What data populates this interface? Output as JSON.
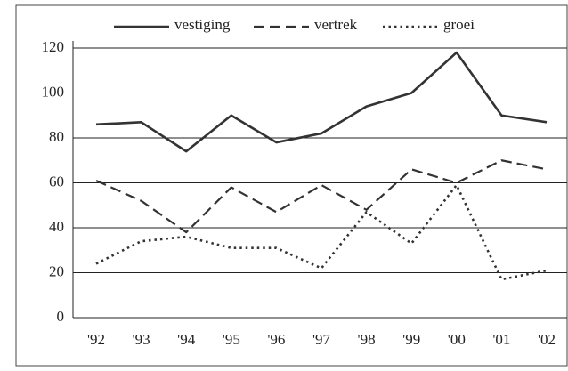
{
  "chart_data": {
    "type": "line",
    "categories": [
      "'92",
      "'93",
      "'94",
      "'95",
      "'96",
      "'97",
      "'98",
      "'99",
      "'00",
      "'01",
      "'02"
    ],
    "series": [
      {
        "name": "vestiging",
        "color": "#333333",
        "dash": "solid",
        "values": [
          86,
          87,
          74,
          90,
          78,
          82,
          94,
          100,
          118,
          90,
          87
        ]
      },
      {
        "name": "vertrek",
        "color": "#333333",
        "dash": "dashed",
        "values": [
          61,
          52,
          38,
          58,
          47,
          59,
          48,
          66,
          60,
          70,
          66
        ]
      },
      {
        "name": "groei",
        "color": "#333333",
        "dash": "dotted",
        "values": [
          24,
          34,
          36,
          31,
          31,
          22,
          47,
          33,
          59,
          17,
          21
        ]
      }
    ],
    "ylim": [
      0,
      120
    ],
    "yticks": [
      0,
      20,
      40,
      60,
      80,
      100,
      120
    ],
    "grid": true,
    "legend": "top"
  }
}
